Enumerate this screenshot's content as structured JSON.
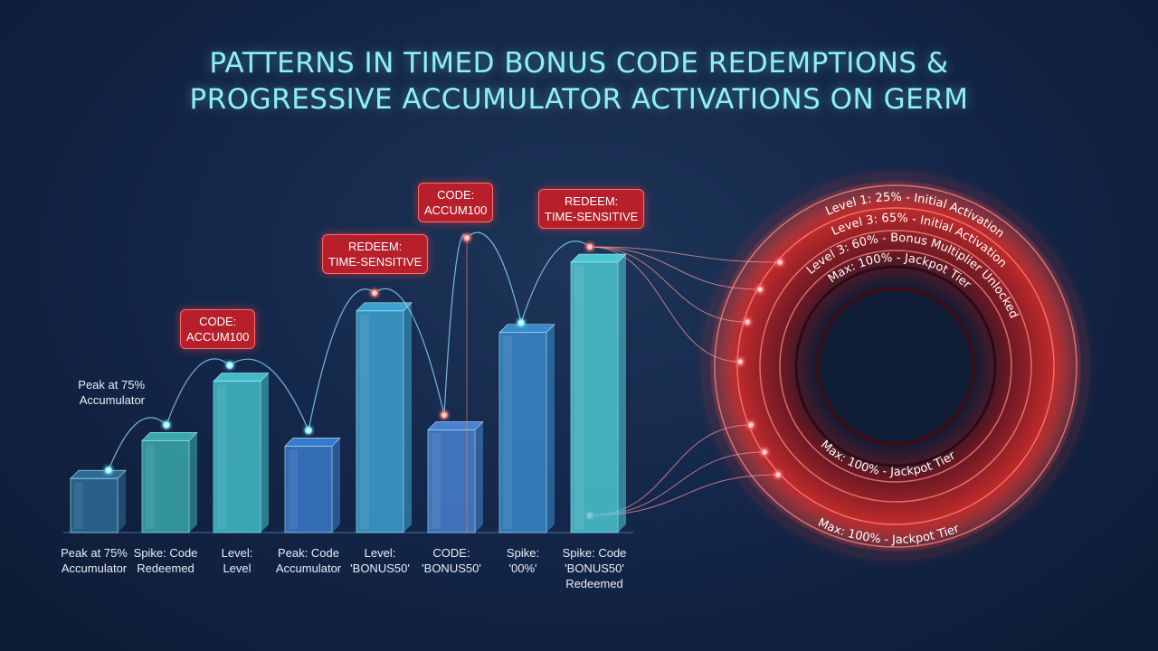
{
  "title_line1": "PATTERNS IN TIMED BONUS CODE REDEMPTIONS &",
  "title_line2": "PROGRESSIVE ACCUMULATOR ACTIVATIONS ON GERM",
  "chart_data": {
    "type": "bar",
    "categories": [
      "Peak at 75%\nAccumulator",
      "Spike: Code\nRedeemed",
      "Level:\nLevel",
      "Peak: Code\nAccumulator",
      "Level:\n'BONUS50'",
      "CODE:\n'BONUS50'",
      "Spike:\n'00%'",
      "Spike: Code\n'BONUS50'\nRedeemed"
    ],
    "values": [
      20,
      34,
      56,
      32,
      82,
      38,
      74,
      100
    ],
    "bar_colors": [
      "#2f6f9a",
      "#3bb0b4",
      "#45c6cf",
      "#3c7ed0",
      "#3fa8d8",
      "#4a86d6",
      "#3a8fd0",
      "#4fd0d8"
    ],
    "ylim": [
      0,
      110
    ],
    "annotations": [
      {
        "text": "CODE:\nACCUM100",
        "bar": 2
      },
      {
        "text": "REDEEM:\nTIME-SENSITIVE",
        "bar": 4
      },
      {
        "text": "CODE:\nACCUM100",
        "bar": 5
      },
      {
        "text": "REDEEM:\nTIME-SENSITIVE",
        "bar": 7
      }
    ],
    "side_note": "Peak at 75%\nAccumulator",
    "rings": [
      {
        "label": "Level 1: 25% - Initial Activation"
      },
      {
        "label": "Level 3: 65% - Initial Activation"
      },
      {
        "label": "Level 3: 60% - Bonus Multiplier Unlocked"
      },
      {
        "label": "Max: 100% - Jackpot Tier"
      }
    ],
    "ring_lower_labels": [
      "Max: 100% - Jackpot Tier",
      "Max: 100% - Jackpot Tier"
    ],
    "colors": {
      "accent_cyan": "#8ff0f3",
      "accent_red": "#e53935",
      "callout_bg": "#b71f2a"
    }
  }
}
